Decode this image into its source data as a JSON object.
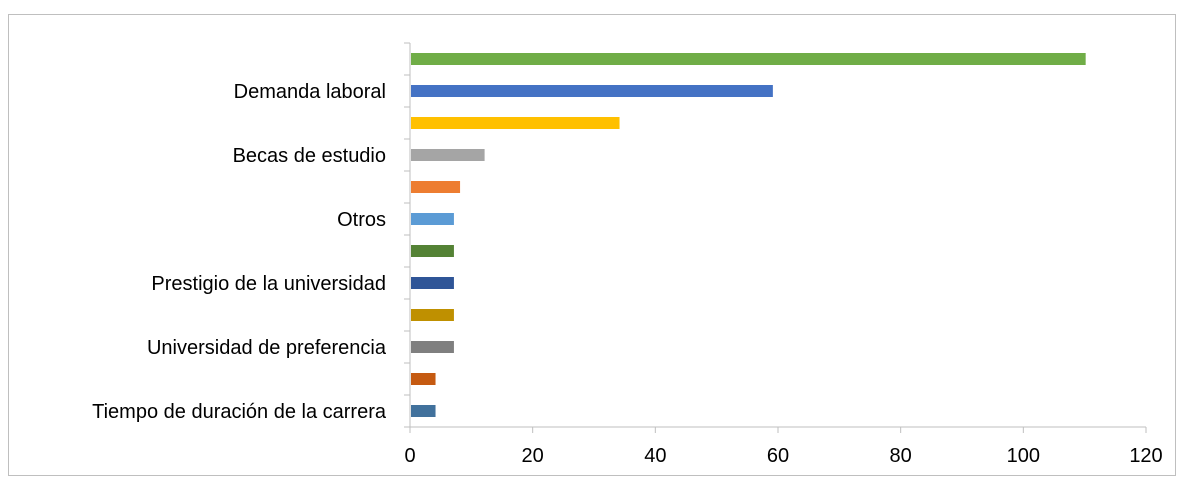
{
  "chart_data": {
    "type": "bar",
    "orientation": "horizontal",
    "title": "",
    "xlabel": "",
    "ylabel": "",
    "xlim": [
      0,
      120
    ],
    "x_ticks": [
      "0",
      "20",
      "40",
      "60",
      "80",
      "100",
      "120"
    ],
    "grid": false,
    "legend": "none",
    "categories_top_to_bottom": [
      {
        "label": "",
        "value": 110,
        "color": "#70ad47"
      },
      {
        "label": "Demanda laboral",
        "value": 59,
        "color": "#4472c4"
      },
      {
        "label": "",
        "value": 34,
        "color": "#ffc000"
      },
      {
        "label": "Becas de estudio",
        "value": 12,
        "color": "#a5a5a5"
      },
      {
        "label": "",
        "value": 8,
        "color": "#ed7d31"
      },
      {
        "label": "Otros",
        "value": 7,
        "color": "#5b9bd5"
      },
      {
        "label": "",
        "value": 7,
        "color": "#548235"
      },
      {
        "label": "Prestigio de la universidad",
        "value": 7,
        "color": "#2f5597"
      },
      {
        "label": "",
        "value": 7,
        "color": "#bf9000"
      },
      {
        "label": "Universidad de preferencia",
        "value": 7,
        "color": "#7f7f7f"
      },
      {
        "label": "",
        "value": 4,
        "color": "#c55a11"
      },
      {
        "label": "Tiempo de duración de la carrera",
        "value": 4,
        "color": "#41719c"
      }
    ]
  }
}
